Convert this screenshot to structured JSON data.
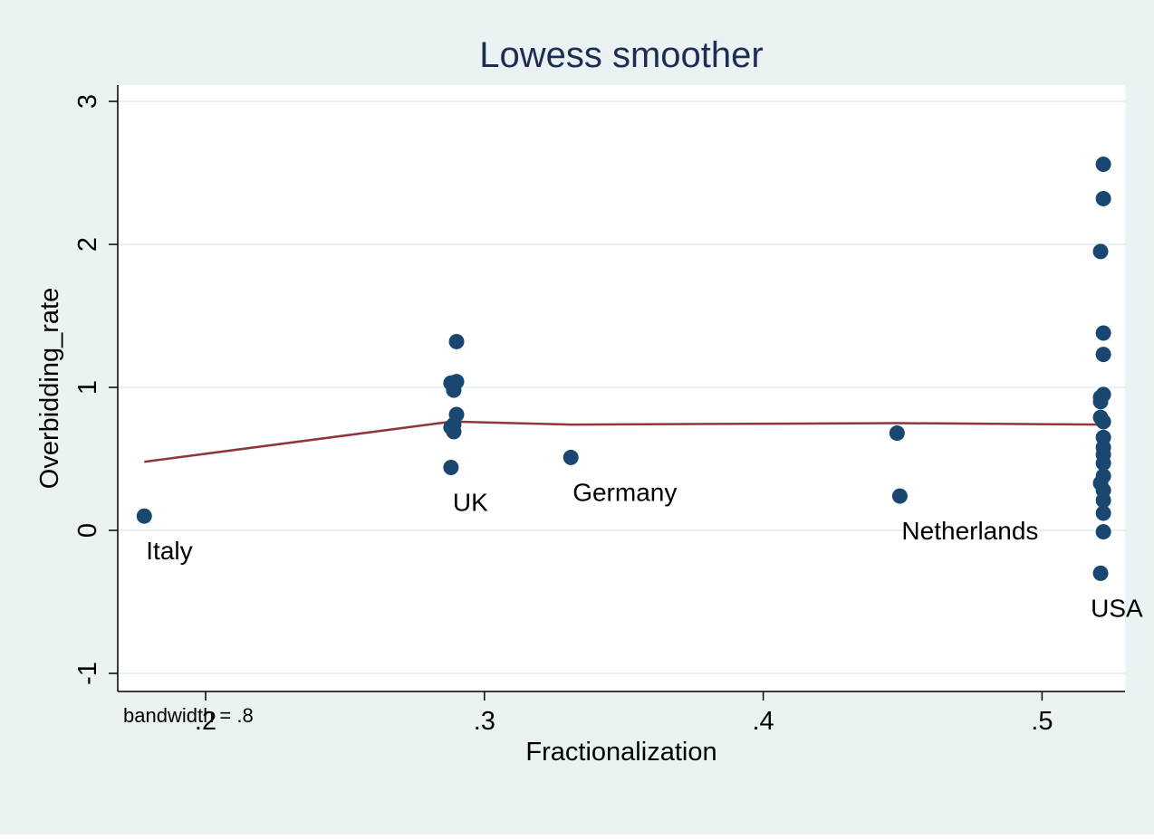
{
  "chart_data": {
    "type": "scatter",
    "title": "Lowess smoother",
    "xlabel": "Fractionalization",
    "ylabel": "Overbidding_rate",
    "note": "bandwidth = .8",
    "xlim": [
      0.17,
      0.53
    ],
    "ylim": [
      -1.15,
      3.1
    ],
    "xticks": [
      0.2,
      0.3,
      0.4,
      0.5
    ],
    "xtick_labels": [
      ".2",
      ".3",
      ".4",
      ".5"
    ],
    "yticks": [
      -1,
      0,
      1,
      2,
      3
    ],
    "ytick_labels": [
      "-1",
      "0",
      "1",
      "2",
      "3"
    ],
    "grid": true,
    "legend": "none",
    "points": [
      {
        "x": 0.178,
        "y": 0.1
      },
      {
        "x": 0.288,
        "y": 1.03
      },
      {
        "x": 0.29,
        "y": 1.04
      },
      {
        "x": 0.289,
        "y": 0.98
      },
      {
        "x": 0.29,
        "y": 1.32
      },
      {
        "x": 0.29,
        "y": 0.81
      },
      {
        "x": 0.289,
        "y": 0.74
      },
      {
        "x": 0.288,
        "y": 0.72
      },
      {
        "x": 0.289,
        "y": 0.69
      },
      {
        "x": 0.288,
        "y": 0.44
      },
      {
        "x": 0.331,
        "y": 0.51
      },
      {
        "x": 0.448,
        "y": 0.68
      },
      {
        "x": 0.449,
        "y": 0.24
      },
      {
        "x": 0.522,
        "y": 2.56
      },
      {
        "x": 0.522,
        "y": 2.32
      },
      {
        "x": 0.521,
        "y": 1.95
      },
      {
        "x": 0.522,
        "y": 1.38
      },
      {
        "x": 0.522,
        "y": 1.23
      },
      {
        "x": 0.522,
        "y": 0.95
      },
      {
        "x": 0.521,
        "y": 0.93
      },
      {
        "x": 0.521,
        "y": 0.9
      },
      {
        "x": 0.521,
        "y": 0.79
      },
      {
        "x": 0.522,
        "y": 0.76
      },
      {
        "x": 0.522,
        "y": 0.65
      },
      {
        "x": 0.522,
        "y": 0.58
      },
      {
        "x": 0.522,
        "y": 0.53
      },
      {
        "x": 0.522,
        "y": 0.47
      },
      {
        "x": 0.522,
        "y": 0.38
      },
      {
        "x": 0.521,
        "y": 0.33
      },
      {
        "x": 0.522,
        "y": 0.28
      },
      {
        "x": 0.522,
        "y": 0.21
      },
      {
        "x": 0.522,
        "y": 0.12
      },
      {
        "x": 0.522,
        "y": -0.01
      },
      {
        "x": 0.521,
        "y": -0.3
      }
    ],
    "lowess_line": [
      {
        "x": 0.178,
        "y": 0.48
      },
      {
        "x": 0.288,
        "y": 0.76
      },
      {
        "x": 0.29,
        "y": 0.76
      },
      {
        "x": 0.331,
        "y": 0.74
      },
      {
        "x": 0.448,
        "y": 0.75
      },
      {
        "x": 0.522,
        "y": 0.74
      }
    ],
    "point_labels": [
      {
        "text": "Italy",
        "x": 0.178,
        "y": 0.1
      },
      {
        "text": "UK",
        "x": 0.288,
        "y": 0.44
      },
      {
        "text": "Germany",
        "x": 0.331,
        "y": 0.51
      },
      {
        "text": "Netherlands",
        "x": 0.449,
        "y": 0.24
      },
      {
        "text": "USA",
        "x": 0.521,
        "y": -0.3
      }
    ],
    "colors": {
      "background": "#eaf2f3",
      "plot_background": "#ffffff",
      "marker": "#1a476f",
      "lowess_line": "#90353b",
      "title": "#1e2d53",
      "grid": "#eaf2f3",
      "text": "#000000"
    }
  }
}
